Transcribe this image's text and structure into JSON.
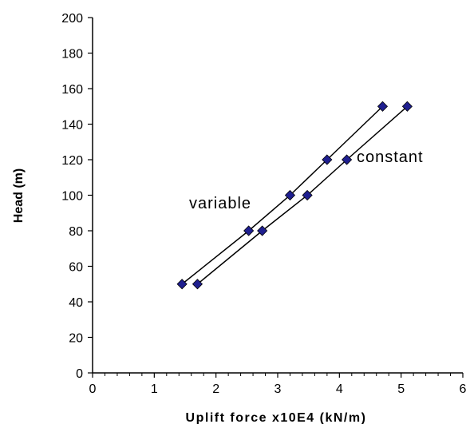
{
  "chart_data": {
    "type": "scatter",
    "xlabel": "Uplift force x10E4 (kN/m)",
    "ylabel": "Head (m)",
    "xlim": [
      0,
      6
    ],
    "ylim": [
      0,
      200
    ],
    "x_ticks": [
      0,
      1,
      2,
      3,
      4,
      5,
      6
    ],
    "y_ticks": [
      0,
      20,
      40,
      60,
      80,
      100,
      120,
      140,
      160,
      180,
      200
    ],
    "grid": false,
    "connected": true,
    "marker": "diamond",
    "colors": {
      "marker": "#1f1f8f",
      "line": "#000000"
    },
    "series": [
      {
        "name": "variable",
        "points": [
          {
            "x": 1.45,
            "y": 50
          },
          {
            "x": 2.53,
            "y": 80
          },
          {
            "x": 3.2,
            "y": 100
          },
          {
            "x": 3.8,
            "y": 120
          },
          {
            "x": 4.7,
            "y": 150
          }
        ]
      },
      {
        "name": "constant",
        "points": [
          {
            "x": 1.7,
            "y": 50
          },
          {
            "x": 2.75,
            "y": 80
          },
          {
            "x": 3.48,
            "y": 100
          },
          {
            "x": 4.12,
            "y": 120
          },
          {
            "x": 5.1,
            "y": 150
          }
        ]
      }
    ]
  }
}
